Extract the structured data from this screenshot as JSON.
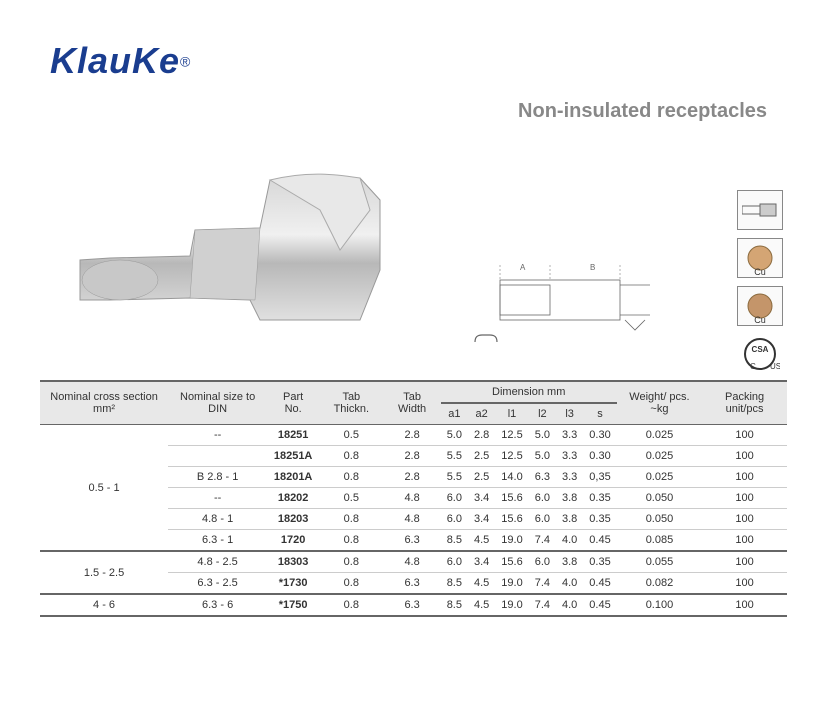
{
  "brand": "KlauKe",
  "registeredMark": "®",
  "subtitle": "Non-insulated receptacles",
  "icons": {
    "connector": "connector-icon",
    "cu1": "Cu",
    "cu2": "Cu",
    "csa": "CSA"
  },
  "table": {
    "headers": {
      "nominalCross": "Nominal cross section mm²",
      "nominalSize": "Nominal size to DIN",
      "partNo": "Part No.",
      "tabThickn": "Tab Thickn.",
      "tabWidth": "Tab Width",
      "dimensionGroup": "Dimension mm",
      "a1": "a1",
      "a2": "a2",
      "l1": "l1",
      "l2": "l2",
      "l3": "l3",
      "s": "s",
      "weight": "Weight/ pcs. ~kg",
      "packing": "Packing unit/pcs"
    },
    "groups": [
      {
        "nominalCross": "0.5 - 1",
        "rows": [
          {
            "nominalSize": "--",
            "partNo": "18251",
            "tabThickn": "0.5",
            "tabWidth": "2.8",
            "a1": "5.0",
            "a2": "2.8",
            "l1": "12.5",
            "l2": "5.0",
            "l3": "3.3",
            "s": "0.30",
            "weight": "0.025",
            "packing": "100"
          },
          {
            "nominalSize": "",
            "partNo": "18251A",
            "tabThickn": "0.8",
            "tabWidth": "2.8",
            "a1": "5.5",
            "a2": "2.5",
            "l1": "12.5",
            "l2": "5.0",
            "l3": "3.3",
            "s": "0.30",
            "weight": "0.025",
            "packing": "100"
          },
          {
            "nominalSize": "B 2.8 - 1",
            "partNo": "18201A",
            "tabThickn": "0.8",
            "tabWidth": "2.8",
            "a1": "5.5",
            "a2": "2.5",
            "l1": "14.0",
            "l2": "6.3",
            "l3": "3.3",
            "s": "0,35",
            "weight": "0.025",
            "packing": "100"
          },
          {
            "nominalSize": "--",
            "partNo": "18202",
            "tabThickn": "0.5",
            "tabWidth": "4.8",
            "a1": "6.0",
            "a2": "3.4",
            "l1": "15.6",
            "l2": "6.0",
            "l3": "3.8",
            "s": "0.35",
            "weight": "0.050",
            "packing": "100"
          },
          {
            "nominalSize": "4.8 - 1",
            "partNo": "18203",
            "tabThickn": "0.8",
            "tabWidth": "4.8",
            "a1": "6.0",
            "a2": "3.4",
            "l1": "15.6",
            "l2": "6.0",
            "l3": "3.8",
            "s": "0.35",
            "weight": "0.050",
            "packing": "100"
          },
          {
            "nominalSize": "6.3 - 1",
            "partNo": "1720",
            "tabThickn": "0.8",
            "tabWidth": "6.3",
            "a1": "8.5",
            "a2": "4.5",
            "l1": "19.0",
            "l2": "7.4",
            "l3": "4.0",
            "s": "0.45",
            "weight": "0.085",
            "packing": "100"
          }
        ]
      },
      {
        "nominalCross": "1.5 - 2.5",
        "rows": [
          {
            "nominalSize": "4.8 - 2.5",
            "partNo": "18303",
            "tabThickn": "0.8",
            "tabWidth": "4.8",
            "a1": "6.0",
            "a2": "3.4",
            "l1": "15.6",
            "l2": "6.0",
            "l3": "3.8",
            "s": "0.35",
            "weight": "0.055",
            "packing": "100"
          },
          {
            "nominalSize": "6.3 - 2.5",
            "partNo": "*1730",
            "tabThickn": "0.8",
            "tabWidth": "6.3",
            "a1": "8.5",
            "a2": "4.5",
            "l1": "19.0",
            "l2": "7.4",
            "l3": "4.0",
            "s": "0.45",
            "weight": "0.082",
            "packing": "100"
          }
        ]
      },
      {
        "nominalCross": "4 - 6",
        "rows": [
          {
            "nominalSize": "6.3 - 6",
            "partNo": "*1750",
            "tabThickn": "0.8",
            "tabWidth": "6.3",
            "a1": "8.5",
            "a2": "4.5",
            "l1": "19.0",
            "l2": "7.4",
            "l3": "4.0",
            "s": "0.45",
            "weight": "0.100",
            "packing": "100"
          }
        ]
      }
    ]
  }
}
